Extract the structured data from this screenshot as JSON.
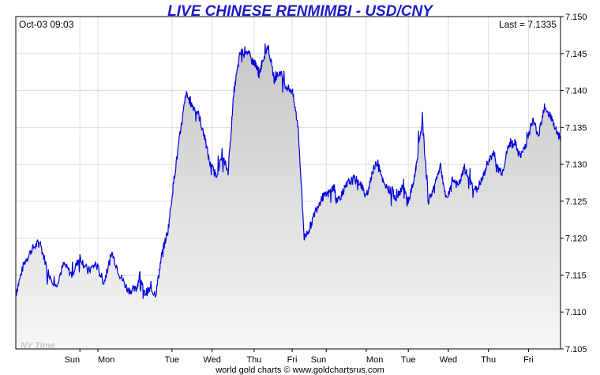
{
  "title": "LIVE CHINESE RENMIMBI - USD/CNY",
  "timestamp": "Oct-03  09:03",
  "last_label": "Last = 7.1335",
  "watermark": "NY Time",
  "footer": "world gold charts © www.goldchartsrus.com",
  "colors": {
    "line": "#0000dd",
    "title": "#1a1acc",
    "fill_top": "#c8c8c8",
    "fill_bottom": "#f4f4f4",
    "grid": "#dddddd"
  },
  "chart_data": {
    "type": "area",
    "title": "LIVE CHINESE RENMIMBI - USD/CNY",
    "xlabel": "",
    "ylabel": "",
    "ylim": [
      7.105,
      7.15
    ],
    "y_ticks": [
      "7.105",
      "7.110",
      "7.115",
      "7.120",
      "7.125",
      "7.130",
      "7.135",
      "7.140",
      "7.145",
      "7.150"
    ],
    "x_ticks": [
      "Sun",
      "Mon",
      "Tue",
      "Wed",
      "Thu",
      "Fri",
      "Sun",
      "Mon",
      "Tue",
      "Wed",
      "Thu",
      "Fri"
    ],
    "x_range_days": [
      0,
      13.6
    ],
    "grid": true,
    "series": [
      {
        "x_days": [
          0.0,
          0.2,
          0.4,
          0.6,
          0.8,
          1.0,
          1.2,
          1.4,
          1.6,
          1.8,
          2.0,
          2.2,
          2.4,
          2.6,
          2.8,
          3.0,
          3.1,
          3.2,
          3.35,
          3.5,
          3.65,
          3.8,
          3.95,
          4.1,
          4.25,
          4.4,
          4.55,
          4.7,
          4.85,
          5.0,
          5.15,
          5.3,
          5.45,
          5.6,
          5.75,
          5.9,
          6.0,
          6.08,
          6.15,
          6.3,
          6.45,
          6.6,
          6.75,
          6.9,
          7.05,
          7.2,
          7.35,
          7.5,
          7.65,
          7.8,
          7.95,
          8.0,
          8.15,
          8.3,
          8.45,
          8.6,
          8.75,
          8.9,
          9.05,
          9.2,
          9.35,
          9.5,
          9.65,
          9.8,
          9.95,
          10.0,
          10.15,
          10.3,
          10.45,
          10.6,
          10.75,
          10.9,
          11.05,
          11.2,
          11.35,
          11.5,
          11.65,
          11.8,
          11.95,
          12.0,
          12.15,
          12.3,
          12.45,
          12.6,
          12.75,
          12.9,
          13.05,
          13.2,
          13.35,
          13.5,
          13.6
        ],
        "values": [
          7.1125,
          7.1165,
          7.1185,
          7.1195,
          7.1155,
          7.1135,
          7.1165,
          7.115,
          7.1175,
          7.1155,
          7.1165,
          7.114,
          7.118,
          7.115,
          7.113,
          7.113,
          7.115,
          7.1125,
          7.113,
          7.1125,
          7.118,
          7.121,
          7.128,
          7.134,
          7.1395,
          7.138,
          7.137,
          7.134,
          7.13,
          7.1285,
          7.131,
          7.129,
          7.14,
          7.145,
          7.1455,
          7.144,
          7.1435,
          7.142,
          7.144,
          7.146,
          7.1415,
          7.1425,
          7.1405,
          7.14,
          7.135,
          7.12,
          7.1215,
          7.124,
          7.1255,
          7.126,
          7.127,
          7.125,
          7.126,
          7.1275,
          7.128,
          7.1275,
          7.1255,
          7.129,
          7.1305,
          7.127,
          7.1265,
          7.1255,
          7.127,
          7.125,
          7.128,
          7.13,
          7.136,
          7.125,
          7.127,
          7.13,
          7.125,
          7.128,
          7.127,
          7.1295,
          7.1275,
          7.1265,
          7.128,
          7.1305,
          7.1315,
          7.1295,
          7.129,
          7.1325,
          7.133,
          7.131,
          7.133,
          7.136,
          7.134,
          7.138,
          7.1365,
          7.1345,
          7.1335
        ]
      }
    ]
  }
}
